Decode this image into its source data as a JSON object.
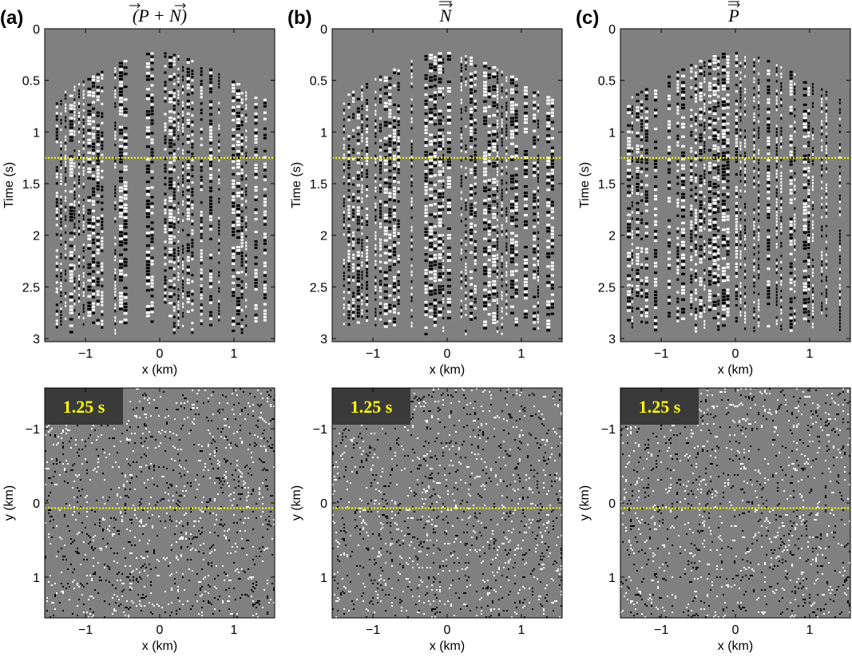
{
  "panels": [
    {
      "letter": "(a)",
      "title": "(P + N)"
    },
    {
      "letter": "(b)",
      "title": "N"
    },
    {
      "letter": "(c)",
      "title": "P"
    }
  ],
  "chart_data": [
    {
      "type": "heatmap",
      "panel": "(a)",
      "row": "top",
      "title": "(P + N)",
      "xlabel": "x (km)",
      "ylabel": "Time (s)",
      "xlim": [
        -1.55,
        1.55
      ],
      "ylim": [
        3.03,
        0
      ],
      "xticks": [
        -1,
        0,
        1
      ],
      "xtick_labels": [
        "−1",
        "0",
        "1"
      ],
      "yticks": [
        0,
        0.5,
        1,
        1.5,
        2,
        2.5,
        3
      ],
      "ytick_labels": [
        "0",
        "0.5",
        "1",
        "1.5",
        "2",
        "2.5",
        "3"
      ],
      "line": {
        "axis": "y",
        "value": 1.25,
        "color": "#ffff00",
        "style": "dotted"
      },
      "colormap": [
        "#000000",
        "#808080",
        "#ffffff"
      ]
    },
    {
      "type": "heatmap",
      "panel": "(b)",
      "row": "top",
      "title": "N",
      "xlabel": "x (km)",
      "ylabel": "Time (s)",
      "xlim": [
        -1.55,
        1.55
      ],
      "ylim": [
        3.03,
        0
      ],
      "xticks": [
        -1,
        0,
        1
      ],
      "xtick_labels": [
        "−1",
        "0",
        "1"
      ],
      "yticks": [
        0,
        0.5,
        1,
        1.5,
        2,
        2.5,
        3
      ],
      "ytick_labels": [
        "0",
        "0.5",
        "1",
        "1.5",
        "2",
        "2.5",
        "3"
      ],
      "line": {
        "axis": "y",
        "value": 1.25,
        "color": "#ffff00",
        "style": "dotted"
      },
      "colormap": [
        "#000000",
        "#808080",
        "#ffffff"
      ]
    },
    {
      "type": "heatmap",
      "panel": "(c)",
      "row": "top",
      "title": "P",
      "xlabel": "x (km)",
      "ylabel": "Time (s)",
      "xlim": [
        -1.55,
        1.55
      ],
      "ylim": [
        3.03,
        0
      ],
      "xticks": [
        -1,
        0,
        1
      ],
      "xtick_labels": [
        "−1",
        "0",
        "1"
      ],
      "yticks": [
        0,
        0.5,
        1,
        1.5,
        2,
        2.5,
        3
      ],
      "ytick_labels": [
        "0",
        "0.5",
        "1",
        "1.5",
        "2",
        "2.5",
        "3"
      ],
      "line": {
        "axis": "y",
        "value": 1.25,
        "color": "#ffff00",
        "style": "dotted"
      },
      "colormap": [
        "#000000",
        "#808080",
        "#ffffff"
      ]
    },
    {
      "type": "heatmap",
      "panel": "(a)",
      "row": "bottom",
      "annotation": "1.25 s",
      "xlabel": "x (km)",
      "ylabel": "y (km)",
      "xlim": [
        -1.55,
        1.55
      ],
      "ylim": [
        1.55,
        -1.55
      ],
      "xticks": [
        -1,
        0,
        1
      ],
      "xtick_labels": [
        "−1",
        "0",
        "1"
      ],
      "yticks": [
        -1,
        0,
        1
      ],
      "ytick_labels": [
        "−1",
        "0",
        "1"
      ],
      "line": {
        "axis": "y",
        "value": 0.07,
        "color": "#ffff00",
        "style": "dotted"
      },
      "colormap": [
        "#000000",
        "#808080",
        "#ffffff"
      ]
    },
    {
      "type": "heatmap",
      "panel": "(b)",
      "row": "bottom",
      "annotation": "1.25 s",
      "xlabel": "x (km)",
      "ylabel": "y (km)",
      "xlim": [
        -1.55,
        1.55
      ],
      "ylim": [
        1.55,
        -1.55
      ],
      "xticks": [
        -1,
        0,
        1
      ],
      "xtick_labels": [
        "−1",
        "0",
        "1"
      ],
      "yticks": [
        -1,
        0,
        1
      ],
      "ytick_labels": [
        "−1",
        "0",
        "1"
      ],
      "line": {
        "axis": "y",
        "value": 0.07,
        "color": "#ffff00",
        "style": "dotted"
      },
      "colormap": [
        "#000000",
        "#808080",
        "#ffffff"
      ]
    },
    {
      "type": "heatmap",
      "panel": "(c)",
      "row": "bottom",
      "annotation": "1.25 s",
      "xlabel": "x (km)",
      "ylabel": "y (km)",
      "xlim": [
        -1.55,
        1.55
      ],
      "ylim": [
        1.55,
        -1.55
      ],
      "xticks": [
        -1,
        0,
        1
      ],
      "xtick_labels": [
        "−1",
        "0",
        "1"
      ],
      "yticks": [
        -1,
        0,
        1
      ],
      "ytick_labels": [
        "−1",
        "0",
        "1"
      ],
      "line": {
        "axis": "y",
        "value": 0.07,
        "color": "#ffff00",
        "style": "dotted"
      },
      "colormap": [
        "#000000",
        "#808080",
        "#ffffff"
      ]
    }
  ],
  "colors": {
    "background": "#808080",
    "annotation_box": "#3a3a3a",
    "annotation_text": "#ffff00",
    "marker_line": "#ffff00"
  }
}
